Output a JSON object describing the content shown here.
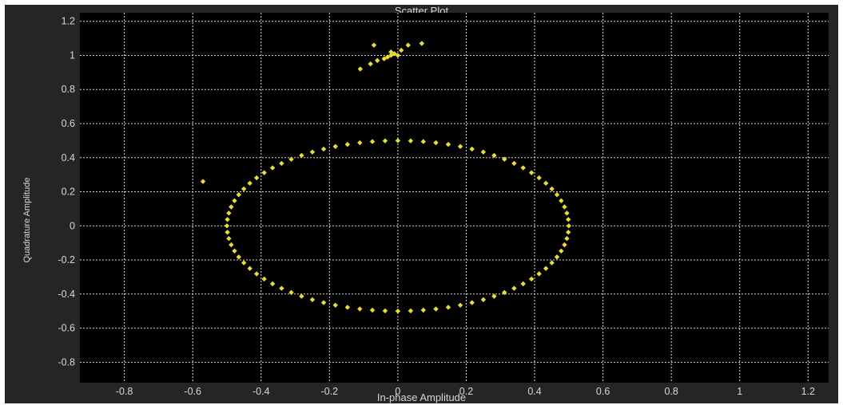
{
  "chart_data": {
    "type": "scatter",
    "title": "Scatter Plot",
    "xlabel": "In-phase Amplitude",
    "ylabel": "Quadrature Amplitude",
    "xlim": [
      -0.93,
      1.26
    ],
    "ylim": [
      -0.92,
      1.25
    ],
    "xticks": [
      "-0.8",
      "-0.6",
      "-0.4",
      "-0.2",
      "0",
      "0.2",
      "0.4",
      "0.6",
      "0.8",
      "1",
      "1.2"
    ],
    "yticks": [
      "1.2",
      "1",
      "0.8",
      "0.6",
      "0.4",
      "0.2",
      "0",
      "-0.2",
      "-0.4",
      "-0.6",
      "-0.8"
    ],
    "grid": true,
    "colors": {
      "background": "#000000",
      "grid": "#ffffff",
      "marker": "#e6dd3a",
      "frame": "#252525"
    },
    "circle": {
      "center": [
        0,
        0
      ],
      "radius": 0.5,
      "n_points": 84
    },
    "series": [
      {
        "values": [
          {
            "x": -0.57,
            "y": 0.26
          },
          {
            "x": -0.02,
            "y": 1.0
          },
          {
            "x": -0.03,
            "y": 0.99
          },
          {
            "x": -0.01,
            "y": 1.01
          },
          {
            "x": -0.04,
            "y": 0.98
          },
          {
            "x": -0.06,
            "y": 0.97
          },
          {
            "x": -0.08,
            "y": 0.95
          },
          {
            "x": -0.11,
            "y": 0.92
          },
          {
            "x": -0.07,
            "y": 1.06
          },
          {
            "x": 0.01,
            "y": 1.03
          },
          {
            "x": 0.03,
            "y": 1.06
          },
          {
            "x": 0.07,
            "y": 1.07
          },
          {
            "x": -0.02,
            "y": 1.02
          },
          {
            "x": 0.0,
            "y": 1.0
          }
        ]
      }
    ]
  }
}
